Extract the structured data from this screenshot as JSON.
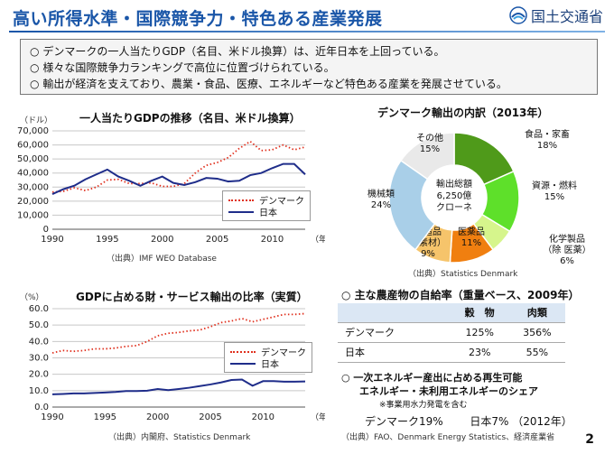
{
  "header": {
    "title": "高い所得水準・国際競争力・特色ある産業発展",
    "logo_text": "国土交通省",
    "logo_icon": "mlit-logo-icon"
  },
  "summary": {
    "bullet": "○",
    "lines": [
      "デンマークの一人当たりGDP（名目、米ドル換算）は、近年日本を上回っている。",
      "様々な国際競争力ランキングで高位に位置づけられている。",
      "輸出が経済を支えており、農業・食品、医療、エネルギーなど特色ある産業を発展させている。"
    ]
  },
  "gdp_chart": {
    "unit": "（ドル）",
    "source": "（出典）IMF WEO Database"
  },
  "export_chart": {
    "unit": "（%）",
    "source": "（出典）内閣府、Statistics Denmark"
  },
  "pie": {
    "source": "（出典）Statistics Denmark",
    "center_lines": [
      "輸出総額",
      "6,250億",
      "クローネ"
    ]
  },
  "food": {
    "heading": "○ 主な農産物の自給率（重量ベース、2009年）",
    "columns": [
      "",
      "穀　物",
      "肉類"
    ],
    "rows": [
      {
        "name": "デンマーク",
        "grain": "125%",
        "meat": "356%"
      },
      {
        "name": "日本",
        "grain": "23%",
        "meat": "55%"
      }
    ]
  },
  "energy": {
    "line1": "○ 一次エネルギー産出に占める再生可能",
    "line2": "エネルギー・未利用エネルギーのシェア",
    "note": "※事業用水力発電を含む",
    "denmark": "デンマーク19%",
    "japan": "日本7%",
    "year": "（2012年）",
    "source": "（出典）FAO、Denmark Energy Statistics、経済産業省"
  },
  "page_number": "2",
  "chart_data": [
    {
      "type": "line",
      "title": "一人当たりGDPの推移（名目、米ドル換算）",
      "xlabel": "（年）",
      "ylabel": "（ドル）",
      "xlim": [
        1990,
        2013
      ],
      "ylim": [
        0,
        70000
      ],
      "yticks": [
        0,
        10000,
        20000,
        30000,
        40000,
        50000,
        60000,
        70000
      ],
      "ytick_labels": [
        "0",
        "10,000",
        "20,000",
        "30,000",
        "40,000",
        "50,000",
        "60,000",
        "70,000"
      ],
      "xticks": [
        1990,
        1995,
        2000,
        2005,
        2010
      ],
      "grid": true,
      "legend": "lower-right",
      "x": [
        1990,
        1991,
        1992,
        1993,
        1994,
        1995,
        1996,
        1997,
        1998,
        1999,
        2000,
        2001,
        2002,
        2003,
        2004,
        2005,
        2006,
        2007,
        2008,
        2009,
        2010,
        2011,
        2012,
        2013
      ],
      "series": [
        {
          "name": "デンマーク",
          "color": "#e0301e",
          "style": "dotted",
          "values": [
            26500,
            27000,
            29500,
            27500,
            30000,
            35000,
            35500,
            32500,
            32500,
            33000,
            30500,
            30500,
            32500,
            40000,
            45500,
            47500,
            51000,
            57500,
            62500,
            56000,
            56500,
            60000,
            56500,
            58500
          ]
        },
        {
          "name": "日本",
          "color": "#1f2d8a",
          "style": "solid",
          "values": [
            25000,
            28500,
            31000,
            35500,
            39000,
            42500,
            37500,
            34500,
            31000,
            34500,
            37500,
            33000,
            31500,
            33500,
            36500,
            36000,
            34000,
            34500,
            38500,
            40000,
            43500,
            46500,
            46500,
            39000
          ]
        }
      ]
    },
    {
      "type": "line",
      "title": "GDPに占める財・サービス輸出の比率（実質）",
      "xlabel": "（年）",
      "ylabel": "（%）",
      "xlim": [
        1990,
        2014
      ],
      "ylim": [
        0,
        60
      ],
      "yticks": [
        0,
        10,
        20,
        30,
        40,
        50,
        60
      ],
      "ytick_labels": [
        "0.0",
        "10.0",
        "20.0",
        "30.0",
        "40.0",
        "50.0",
        "60.0"
      ],
      "xticks": [
        1990,
        1995,
        2000,
        2005,
        2010
      ],
      "grid": true,
      "legend": "right",
      "x": [
        1990,
        1991,
        1992,
        1993,
        1994,
        1995,
        1996,
        1997,
        1998,
        1999,
        2000,
        2001,
        2002,
        2003,
        2004,
        2005,
        2006,
        2007,
        2008,
        2009,
        2010,
        2011,
        2012,
        2013,
        2014
      ],
      "series": [
        {
          "name": "デンマーク",
          "color": "#e0301e",
          "style": "dotted",
          "values": [
            33.0,
            34.5,
            34.0,
            34.5,
            35.5,
            35.5,
            36.0,
            37.0,
            37.5,
            40.0,
            43.5,
            45.0,
            45.5,
            46.5,
            47.0,
            49.0,
            51.5,
            52.5,
            54.0,
            52.0,
            53.5,
            55.0,
            56.5,
            56.5,
            57.0
          ]
        },
        {
          "name": "日本",
          "color": "#1f2d8a",
          "style": "solid",
          "values": [
            7.8,
            8.0,
            8.3,
            8.3,
            8.6,
            8.9,
            9.2,
            9.8,
            9.8,
            10.0,
            11.0,
            10.3,
            11.0,
            11.8,
            12.8,
            13.8,
            15.0,
            16.5,
            16.8,
            13.0,
            15.8,
            15.8,
            15.5,
            15.5,
            15.6
          ]
        }
      ]
    },
    {
      "type": "pie",
      "title": "デンマーク輸出の内訳（2013年）",
      "slices": [
        {
          "label": "食品・家畜",
          "value": 18,
          "display": "18%",
          "color": "#4f9a1a"
        },
        {
          "label": "資源・燃料",
          "value": 15,
          "display": "15%",
          "color": "#5ee02a"
        },
        {
          "label": "化学製品（除 医薬）",
          "value": 6,
          "display": "6%",
          "color": "#d6f58c"
        },
        {
          "label": "医薬品",
          "value": 11,
          "display": "11%",
          "color": "#f07f10"
        },
        {
          "label": "製造品（素材）",
          "value": 9,
          "display": "9%",
          "color": "#f6c46b"
        },
        {
          "label": "機械類",
          "value": 24,
          "display": "24%",
          "color": "#a9cfe8"
        },
        {
          "label": "その他",
          "value": 15,
          "display": "15%",
          "color": "#e9e9e9"
        }
      ]
    }
  ]
}
